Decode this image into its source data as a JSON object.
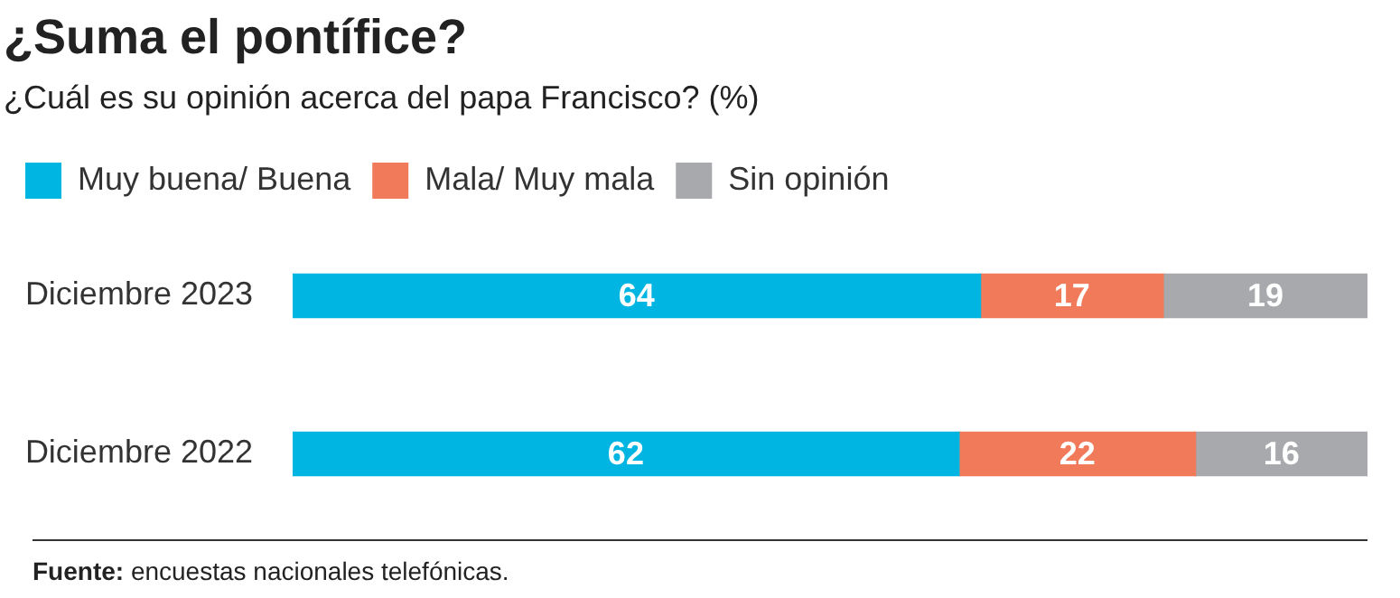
{
  "chart_data": {
    "type": "bar",
    "orientation": "horizontal",
    "stacked": true,
    "title": "¿Suma el pontífice?",
    "subtitle": "¿Cuál es su opinión acerca del papa Francisco? (%)",
    "categories": [
      "Diciembre 2023",
      "Diciembre 2022"
    ],
    "series": [
      {
        "name": "Muy buena/ Buena",
        "color": "#00b5e2",
        "values": [
          64,
          62
        ]
      },
      {
        "name": "Mala/ Muy mala",
        "color": "#f07a5a",
        "values": [
          17,
          22
        ]
      },
      {
        "name": "Sin opinión",
        "color": "#a7a9ac",
        "values": [
          19,
          16
        ]
      }
    ],
    "data_labels": true,
    "legend": "top left",
    "grid": false,
    "tick_labels": "y",
    "annotations": [
      "Fuente: encuestas nacionales telefónicas."
    ]
  }
}
